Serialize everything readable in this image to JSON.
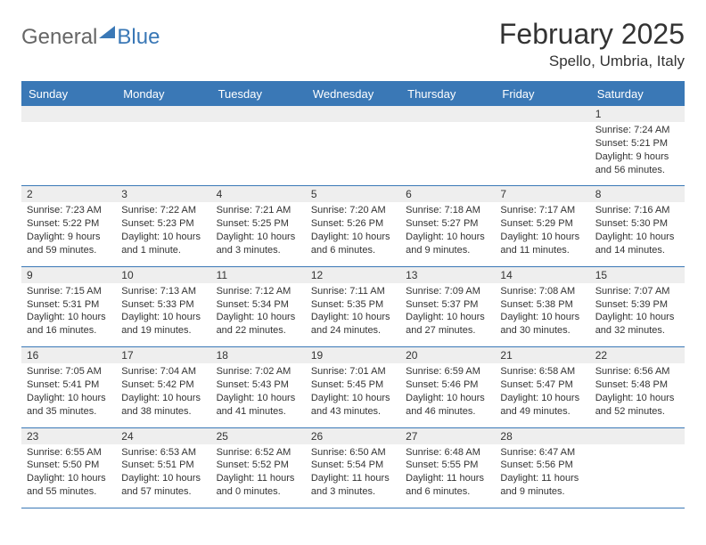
{
  "logo": {
    "part1": "General",
    "part2": "Blue"
  },
  "title": "February 2025",
  "location": "Spello, Umbria, Italy",
  "colors": {
    "headerBg": "#3a78b6",
    "headerFg": "#ffffff",
    "dayNumBg": "#eeeeee",
    "ruleColor": "#3a78b6",
    "text": "#333333"
  },
  "dayNames": [
    "Sunday",
    "Monday",
    "Tuesday",
    "Wednesday",
    "Thursday",
    "Friday",
    "Saturday"
  ],
  "weeks": [
    [
      null,
      null,
      null,
      null,
      null,
      null,
      {
        "n": "1",
        "sr": "Sunrise: 7:24 AM",
        "ss": "Sunset: 5:21 PM",
        "dl": "Daylight: 9 hours and 56 minutes."
      }
    ],
    [
      {
        "n": "2",
        "sr": "Sunrise: 7:23 AM",
        "ss": "Sunset: 5:22 PM",
        "dl": "Daylight: 9 hours and 59 minutes."
      },
      {
        "n": "3",
        "sr": "Sunrise: 7:22 AM",
        "ss": "Sunset: 5:23 PM",
        "dl": "Daylight: 10 hours and 1 minute."
      },
      {
        "n": "4",
        "sr": "Sunrise: 7:21 AM",
        "ss": "Sunset: 5:25 PM",
        "dl": "Daylight: 10 hours and 3 minutes."
      },
      {
        "n": "5",
        "sr": "Sunrise: 7:20 AM",
        "ss": "Sunset: 5:26 PM",
        "dl": "Daylight: 10 hours and 6 minutes."
      },
      {
        "n": "6",
        "sr": "Sunrise: 7:18 AM",
        "ss": "Sunset: 5:27 PM",
        "dl": "Daylight: 10 hours and 9 minutes."
      },
      {
        "n": "7",
        "sr": "Sunrise: 7:17 AM",
        "ss": "Sunset: 5:29 PM",
        "dl": "Daylight: 10 hours and 11 minutes."
      },
      {
        "n": "8",
        "sr": "Sunrise: 7:16 AM",
        "ss": "Sunset: 5:30 PM",
        "dl": "Daylight: 10 hours and 14 minutes."
      }
    ],
    [
      {
        "n": "9",
        "sr": "Sunrise: 7:15 AM",
        "ss": "Sunset: 5:31 PM",
        "dl": "Daylight: 10 hours and 16 minutes."
      },
      {
        "n": "10",
        "sr": "Sunrise: 7:13 AM",
        "ss": "Sunset: 5:33 PM",
        "dl": "Daylight: 10 hours and 19 minutes."
      },
      {
        "n": "11",
        "sr": "Sunrise: 7:12 AM",
        "ss": "Sunset: 5:34 PM",
        "dl": "Daylight: 10 hours and 22 minutes."
      },
      {
        "n": "12",
        "sr": "Sunrise: 7:11 AM",
        "ss": "Sunset: 5:35 PM",
        "dl": "Daylight: 10 hours and 24 minutes."
      },
      {
        "n": "13",
        "sr": "Sunrise: 7:09 AM",
        "ss": "Sunset: 5:37 PM",
        "dl": "Daylight: 10 hours and 27 minutes."
      },
      {
        "n": "14",
        "sr": "Sunrise: 7:08 AM",
        "ss": "Sunset: 5:38 PM",
        "dl": "Daylight: 10 hours and 30 minutes."
      },
      {
        "n": "15",
        "sr": "Sunrise: 7:07 AM",
        "ss": "Sunset: 5:39 PM",
        "dl": "Daylight: 10 hours and 32 minutes."
      }
    ],
    [
      {
        "n": "16",
        "sr": "Sunrise: 7:05 AM",
        "ss": "Sunset: 5:41 PM",
        "dl": "Daylight: 10 hours and 35 minutes."
      },
      {
        "n": "17",
        "sr": "Sunrise: 7:04 AM",
        "ss": "Sunset: 5:42 PM",
        "dl": "Daylight: 10 hours and 38 minutes."
      },
      {
        "n": "18",
        "sr": "Sunrise: 7:02 AM",
        "ss": "Sunset: 5:43 PM",
        "dl": "Daylight: 10 hours and 41 minutes."
      },
      {
        "n": "19",
        "sr": "Sunrise: 7:01 AM",
        "ss": "Sunset: 5:45 PM",
        "dl": "Daylight: 10 hours and 43 minutes."
      },
      {
        "n": "20",
        "sr": "Sunrise: 6:59 AM",
        "ss": "Sunset: 5:46 PM",
        "dl": "Daylight: 10 hours and 46 minutes."
      },
      {
        "n": "21",
        "sr": "Sunrise: 6:58 AM",
        "ss": "Sunset: 5:47 PM",
        "dl": "Daylight: 10 hours and 49 minutes."
      },
      {
        "n": "22",
        "sr": "Sunrise: 6:56 AM",
        "ss": "Sunset: 5:48 PM",
        "dl": "Daylight: 10 hours and 52 minutes."
      }
    ],
    [
      {
        "n": "23",
        "sr": "Sunrise: 6:55 AM",
        "ss": "Sunset: 5:50 PM",
        "dl": "Daylight: 10 hours and 55 minutes."
      },
      {
        "n": "24",
        "sr": "Sunrise: 6:53 AM",
        "ss": "Sunset: 5:51 PM",
        "dl": "Daylight: 10 hours and 57 minutes."
      },
      {
        "n": "25",
        "sr": "Sunrise: 6:52 AM",
        "ss": "Sunset: 5:52 PM",
        "dl": "Daylight: 11 hours and 0 minutes."
      },
      {
        "n": "26",
        "sr": "Sunrise: 6:50 AM",
        "ss": "Sunset: 5:54 PM",
        "dl": "Daylight: 11 hours and 3 minutes."
      },
      {
        "n": "27",
        "sr": "Sunrise: 6:48 AM",
        "ss": "Sunset: 5:55 PM",
        "dl": "Daylight: 11 hours and 6 minutes."
      },
      {
        "n": "28",
        "sr": "Sunrise: 6:47 AM",
        "ss": "Sunset: 5:56 PM",
        "dl": "Daylight: 11 hours and 9 minutes."
      },
      null
    ]
  ]
}
